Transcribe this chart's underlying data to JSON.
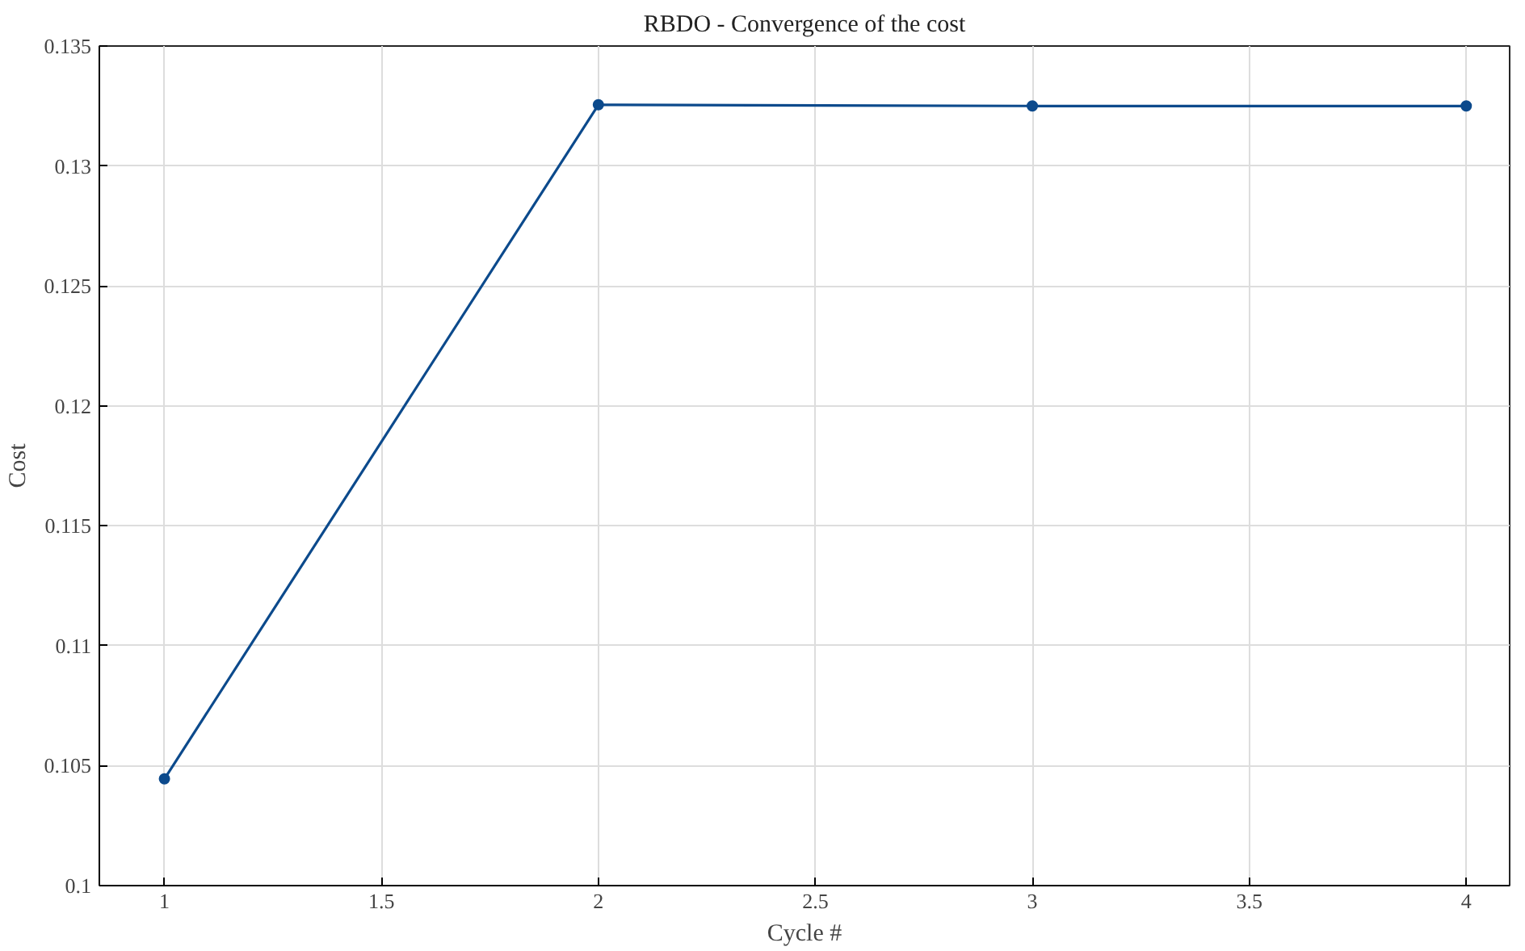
{
  "chart_data": {
    "type": "line",
    "title": "RBDO - Convergence of the cost",
    "xlabel": "Cycle #",
    "ylabel": "Cost",
    "x": [
      1,
      2,
      3,
      4
    ],
    "series": [
      {
        "color": "#0c4a8c",
        "values": [
          0.10445,
          0.13255,
          0.1325,
          0.1325
        ]
      }
    ],
    "xlim": [
      0.85,
      4.1
    ],
    "ylim": [
      0.1,
      0.135
    ],
    "xticks": [
      1,
      1.5,
      2,
      2.5,
      3,
      3.5,
      4
    ],
    "yticks": [
      0.1,
      0.105,
      0.11,
      0.115,
      0.12,
      0.125,
      0.13,
      0.135
    ],
    "grid": true,
    "marker": "circle",
    "line_style": "solid"
  }
}
